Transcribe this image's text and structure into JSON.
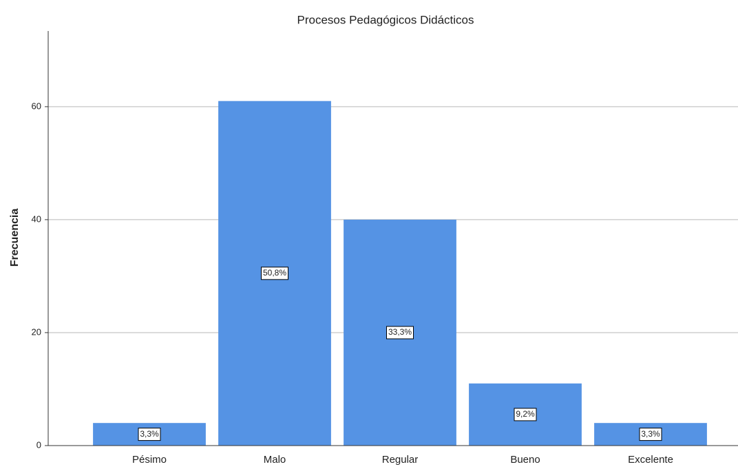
{
  "chart_data": {
    "type": "bar",
    "title": "Procesos Pedagógicos Didácticos",
    "y_label": "Frecuencia",
    "categories": [
      "Pésimo",
      "Malo",
      "Regular",
      "Bueno",
      "Excelente"
    ],
    "values": [
      4,
      61,
      40,
      11,
      4
    ],
    "percentages": [
      3.3,
      50.8,
      33.3,
      9.2,
      3.3
    ],
    "percentage_labels": [
      "3,3%",
      "50,8%",
      "33,3%",
      "9,2%",
      "3,3%"
    ],
    "color": "#5593e4",
    "ylim": [
      0,
      73.4
    ],
    "yticks": [
      0,
      20,
      40,
      60
    ],
    "grid": true
  }
}
